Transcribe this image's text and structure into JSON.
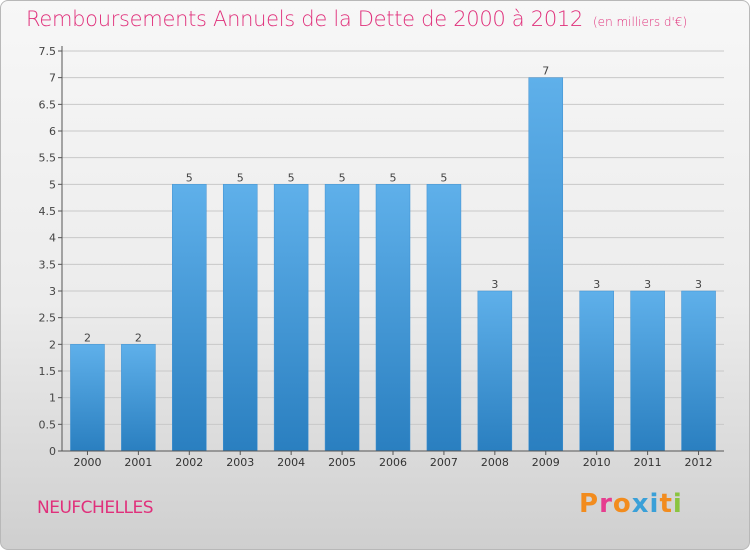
{
  "page": {
    "title": "Remboursements Annuels de la Dette de 2000 à 2012",
    "subtitle": "(en milliers d'€)",
    "commune": "NEUFCHELLES",
    "logo_text": "Proxiti",
    "logo_colors": [
      "#f28c1e",
      "#e63d8f",
      "#f28c1e",
      "#3aa0d8",
      "#3aa0d8",
      "#f28c1e",
      "#8ac43f"
    ]
  },
  "colors": {
    "accent": "#e0307b",
    "bar_top": "#5fb0ea",
    "bar_bottom": "#2a7fc0",
    "axis": "#555555",
    "gridline": "#c8c8c8"
  },
  "chart_data": {
    "type": "bar",
    "title": "Remboursements Annuels de la Dette de 2000 à 2012",
    "subtitle": "(en milliers d'€)",
    "categories": [
      "2000",
      "2001",
      "2002",
      "2003",
      "2004",
      "2005",
      "2006",
      "2007",
      "2008",
      "2009",
      "2010",
      "2011",
      "2012"
    ],
    "values": [
      2,
      2,
      5,
      5,
      5,
      5,
      5,
      5,
      3,
      7,
      3,
      3,
      3
    ],
    "data_labels": [
      "2",
      "2",
      "5",
      "5",
      "5",
      "5",
      "5",
      "5",
      "3",
      "7",
      "3",
      "3",
      "3"
    ],
    "ylim": [
      0,
      7.5
    ],
    "yticks": [
      0,
      0.5,
      1,
      1.5,
      2,
      2.5,
      3,
      3.5,
      4,
      4.5,
      5,
      5.5,
      6,
      6.5,
      7,
      7.5
    ],
    "ytick_labels": [
      "0",
      "0.5",
      "1",
      "1.5",
      "2",
      "2.5",
      "3",
      "3.5",
      "4",
      "4.5",
      "5",
      "5.5",
      "6",
      "6.5",
      "7",
      "7.5"
    ],
    "xlabel": "",
    "ylabel": "",
    "grid": true
  }
}
